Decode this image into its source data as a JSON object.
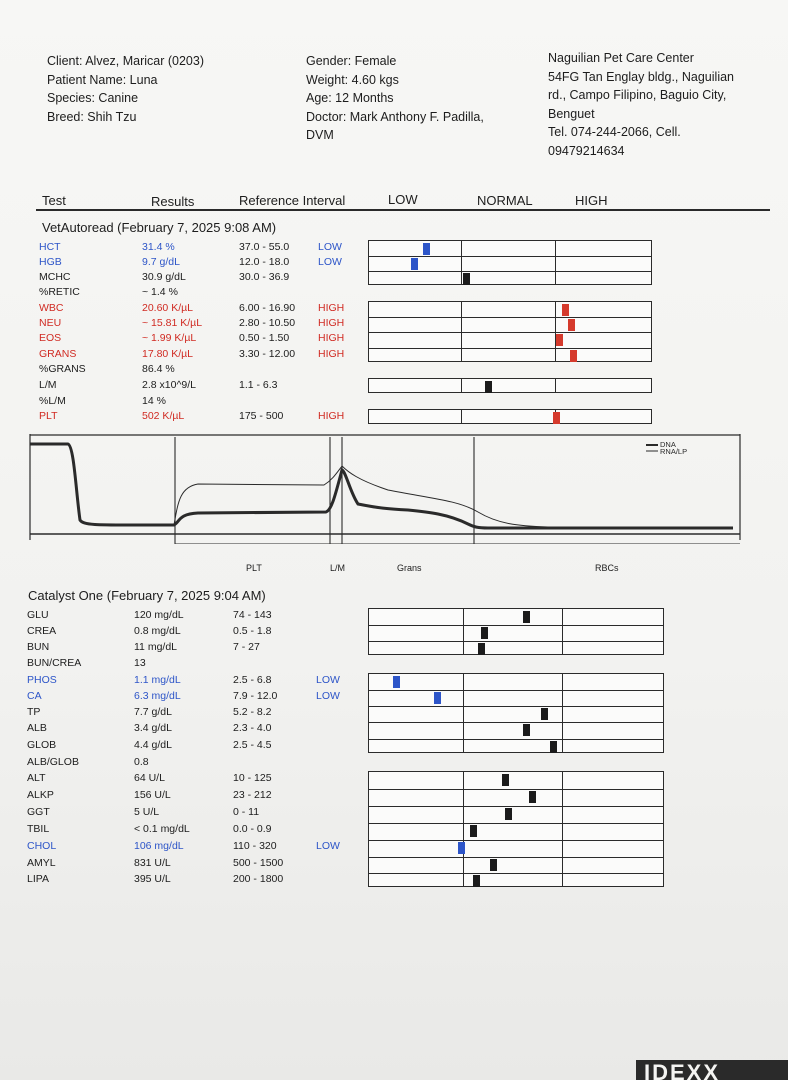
{
  "header": {
    "client": "Client: Alvez, Maricar (0203)",
    "patient": "Patient Name: Luna",
    "species": "Species: Canine",
    "breed": "Breed: Shih Tzu",
    "gender": "Gender: Female",
    "weight": "Weight: 4.60 kgs",
    "age": "Age: 12 Months",
    "doctor_1": "Doctor: Mark Anthony F. Padilla,",
    "doctor_2": "DVM",
    "clinic_1": "Naguilian Pet Care Center",
    "clinic_2": "54FG Tan Englay bldg., Naguilian",
    "clinic_3": "rd., Campo Filipino, Baguio City,",
    "clinic_4": "Benguet",
    "clinic_5": "Tel. 074-244-2066,      Cell.",
    "clinic_6": "09479214634"
  },
  "columns": {
    "test": "Test",
    "results": "Results",
    "reference": "Reference Interval",
    "low": "LOW",
    "normal": "NORMAL",
    "high": "HIGH"
  },
  "vetautoread": {
    "title": "VetAutoread (February 7, 2025 9:08 AM)",
    "rows": [
      {
        "test": "HCT",
        "result": "31.4 %",
        "ref": "37.0 - 55.0",
        "flag": "LOW",
        "color": "blue",
        "level": 0.2
      },
      {
        "test": "HGB",
        "result": "9.7 g/dL",
        "ref": "12.0 - 18.0",
        "flag": "LOW",
        "color": "blue",
        "level": 0.16
      },
      {
        "test": "MCHC",
        "result": "30.9 g/dL",
        "ref": "30.0 - 36.9",
        "flag": "",
        "color": "black",
        "level": 0.34
      },
      {
        "test": "%RETIC",
        "result": "~ 1.4 %",
        "ref": "",
        "flag": "",
        "color": "black",
        "level": null
      },
      {
        "test": "WBC",
        "result": "20.60 K/µL",
        "ref": "6.00 - 16.90",
        "flag": "HIGH",
        "color": "red",
        "level": 0.69
      },
      {
        "test": "NEU",
        "result": "~ 15.81 K/µL",
        "ref": "2.80 - 10.50",
        "flag": "HIGH",
        "color": "red",
        "level": 0.71
      },
      {
        "test": "EOS",
        "result": "~ 1.99 K/µL",
        "ref": "0.50 - 1.50",
        "flag": "HIGH",
        "color": "red",
        "level": 0.67
      },
      {
        "test": "GRANS",
        "result": "17.80 K/µL",
        "ref": "3.30 - 12.00",
        "flag": "HIGH",
        "color": "red",
        "level": 0.72
      },
      {
        "test": "%GRANS",
        "result": "86.4 %",
        "ref": "",
        "flag": "",
        "color": "black",
        "level": null
      },
      {
        "test": "L/M",
        "result": "2.8 x10^9/L",
        "ref": "1.1 - 6.3",
        "flag": "",
        "color": "black",
        "level": 0.42
      },
      {
        "test": "%L/M",
        "result": "14 %",
        "ref": "",
        "flag": "",
        "color": "black",
        "level": null
      },
      {
        "test": "PLT",
        "result": "502 K/µL",
        "ref": "175 - 500",
        "flag": "HIGH",
        "color": "red",
        "level": 0.66
      }
    ]
  },
  "histogram": {
    "labels": [
      "PLT",
      "L/M",
      "Grans",
      "RBCs"
    ],
    "legend": [
      "DNA",
      "RNA/LP"
    ]
  },
  "catalyst": {
    "title": "Catalyst One (February 7, 2025 9:04 AM)",
    "rows": [
      {
        "test": "GLU",
        "result": "120 mg/dL",
        "ref": "74 - 143",
        "flag": "",
        "color": "black",
        "level": 0.53
      },
      {
        "test": "CREA",
        "result": "0.8 mg/dL",
        "ref": "0.5 - 1.8",
        "flag": "",
        "color": "black",
        "level": 0.39
      },
      {
        "test": "BUN",
        "result": "11 mg/dL",
        "ref": "7 - 27",
        "flag": "",
        "color": "black",
        "level": 0.38
      },
      {
        "test": "BUN/CREA",
        "result": "13",
        "ref": "",
        "flag": "",
        "color": "black",
        "level": null
      },
      {
        "test": "PHOS",
        "result": "1.1 mg/dL",
        "ref": "2.5 - 6.8",
        "flag": "LOW",
        "color": "blue",
        "level": 0.09
      },
      {
        "test": "CA",
        "result": "6.3 mg/dL",
        "ref": "7.9 - 12.0",
        "flag": "LOW",
        "color": "blue",
        "level": 0.23
      },
      {
        "test": "TP",
        "result": "7.7 g/dL",
        "ref": "5.2 - 8.2",
        "flag": "",
        "color": "black",
        "level": 0.59
      },
      {
        "test": "ALB",
        "result": "3.4 g/dL",
        "ref": "2.3 - 4.0",
        "flag": "",
        "color": "black",
        "level": 0.53
      },
      {
        "test": "GLOB",
        "result": "4.4 g/dL",
        "ref": "2.5 - 4.5",
        "flag": "",
        "color": "black",
        "level": 0.62
      },
      {
        "test": "ALB/GLOB",
        "result": "0.8",
        "ref": "",
        "flag": "",
        "color": "black",
        "level": null
      },
      {
        "test": "ALT",
        "result": "64 U/L",
        "ref": "10 - 125",
        "flag": "",
        "color": "black",
        "level": 0.46
      },
      {
        "test": "ALKP",
        "result": "156 U/L",
        "ref": "23 - 212",
        "flag": "",
        "color": "black",
        "level": 0.55
      },
      {
        "test": "GGT",
        "result": "5 U/L",
        "ref": "0 - 11",
        "flag": "",
        "color": "black",
        "level": 0.47
      },
      {
        "test": "TBIL",
        "result": "< 0.1 mg/dL",
        "ref": "0.0 - 0.9",
        "flag": "",
        "color": "black",
        "level": 0.35
      },
      {
        "test": "CHOL",
        "result": "106 mg/dL",
        "ref": "110 - 320",
        "flag": "LOW",
        "color": "blue",
        "level": 0.31
      },
      {
        "test": "AMYL",
        "result": "831 U/L",
        "ref": "500 - 1500",
        "flag": "",
        "color": "black",
        "level": 0.42
      },
      {
        "test": "LIPA",
        "result": "395 U/L",
        "ref": "200 - 1800",
        "flag": "",
        "color": "black",
        "level": 0.36
      }
    ]
  },
  "footer": {
    "logo": "IDEXX"
  }
}
